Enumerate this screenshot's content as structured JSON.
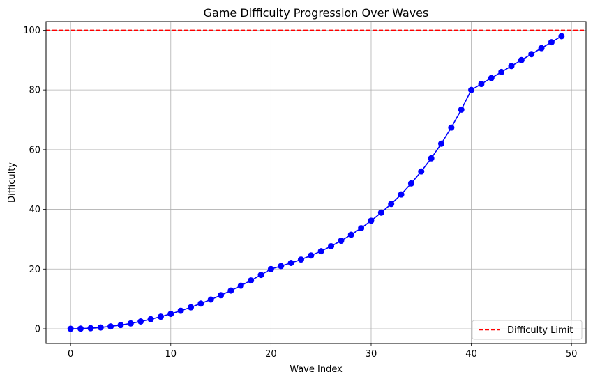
{
  "chart_data": {
    "type": "line",
    "title": "Game Difficulty Progression Over Waves",
    "xlabel": "Wave Index",
    "ylabel": "Difficulty",
    "xlim": [
      -2.45,
      51.45
    ],
    "ylim": [
      -4.9,
      102.9
    ],
    "xticks": [
      0,
      10,
      20,
      30,
      40,
      50
    ],
    "yticks": [
      0,
      20,
      40,
      60,
      80,
      100
    ],
    "grid": true,
    "legend_position": "bottom-right",
    "series": [
      {
        "color": "#0000ff",
        "marker": "circle",
        "x": [
          0,
          1,
          2,
          3,
          4,
          5,
          6,
          7,
          8,
          9,
          10,
          11,
          12,
          13,
          14,
          15,
          16,
          17,
          18,
          19,
          20,
          21,
          22,
          23,
          24,
          25,
          26,
          27,
          28,
          29,
          30,
          31,
          32,
          33,
          34,
          35,
          36,
          37,
          38,
          39,
          40,
          41,
          42,
          43,
          44,
          45,
          46,
          47,
          48,
          49
        ],
        "values": [
          0,
          0.05,
          0.2,
          0.45,
          0.8,
          1.25,
          1.8,
          2.45,
          3.2,
          4.05,
          5.0,
          6.05,
          7.2,
          8.45,
          9.8,
          11.25,
          12.8,
          14.45,
          16.2,
          18.05,
          20.0,
          21.0,
          22.05,
          23.2,
          24.55,
          26.0,
          27.65,
          29.5,
          31.5,
          33.7,
          36.2,
          38.9,
          41.8,
          45.0,
          48.7,
          52.7,
          57.1,
          62.0,
          67.4,
          73.4,
          80.0,
          82.0,
          84.0,
          86.0,
          88.0,
          90.0,
          92.0,
          94.0,
          96.0,
          98.0
        ]
      }
    ],
    "reference_line": {
      "name": "Difficulty Limit",
      "y": 100,
      "color": "#ff0000",
      "style": "dashed"
    }
  }
}
